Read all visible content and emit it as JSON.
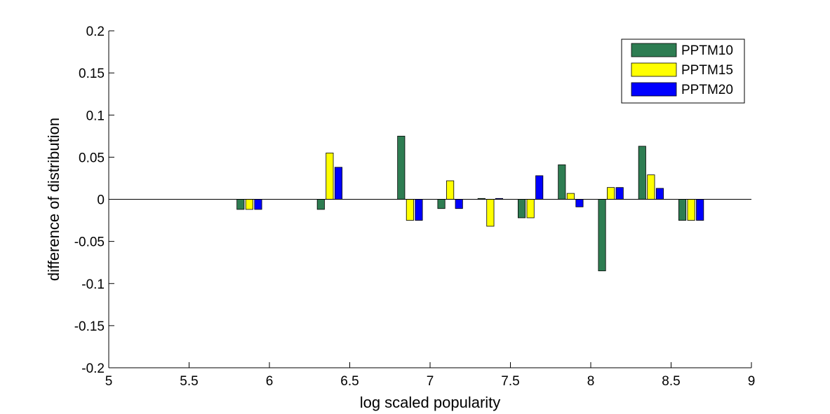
{
  "chart_data": {
    "type": "bar",
    "xlabel": "log scaled popularity",
    "ylabel": "difference of distribution",
    "xlim": [
      5,
      9
    ],
    "ylim": [
      -0.2,
      0.2
    ],
    "x_ticks": [
      "5",
      "5.5",
      "6",
      "6.5",
      "7",
      "7.5",
      "8",
      "8.5",
      "9"
    ],
    "y_ticks": [
      "0.2",
      "0.15",
      "0.1",
      "0.05",
      "0",
      "-0.05",
      "-0.1",
      "-0.15",
      "-0.2"
    ],
    "grid": false,
    "legend_position": "top-right",
    "categories": [
      5.875,
      6.375,
      6.875,
      7.125,
      7.375,
      7.625,
      7.875,
      8.125,
      8.375,
      8.625
    ],
    "bar_width": 0.045,
    "series": [
      {
        "name": "PPTM10",
        "color": "#2e7d52",
        "values": [
          -0.012,
          -0.012,
          0.075,
          -0.011,
          0.001,
          -0.022,
          0.041,
          -0.085,
          0.063,
          -0.025
        ]
      },
      {
        "name": "PPTM15",
        "color": "#ffff00",
        "values": [
          -0.012,
          0.055,
          -0.025,
          0.022,
          -0.032,
          -0.022,
          0.007,
          0.014,
          0.029,
          -0.025
        ]
      },
      {
        "name": "PPTM20",
        "color": "#0000ff",
        "values": [
          -0.012,
          0.038,
          -0.025,
          -0.011,
          0.001,
          0.028,
          -0.009,
          0.014,
          0.013,
          -0.025
        ]
      }
    ]
  }
}
